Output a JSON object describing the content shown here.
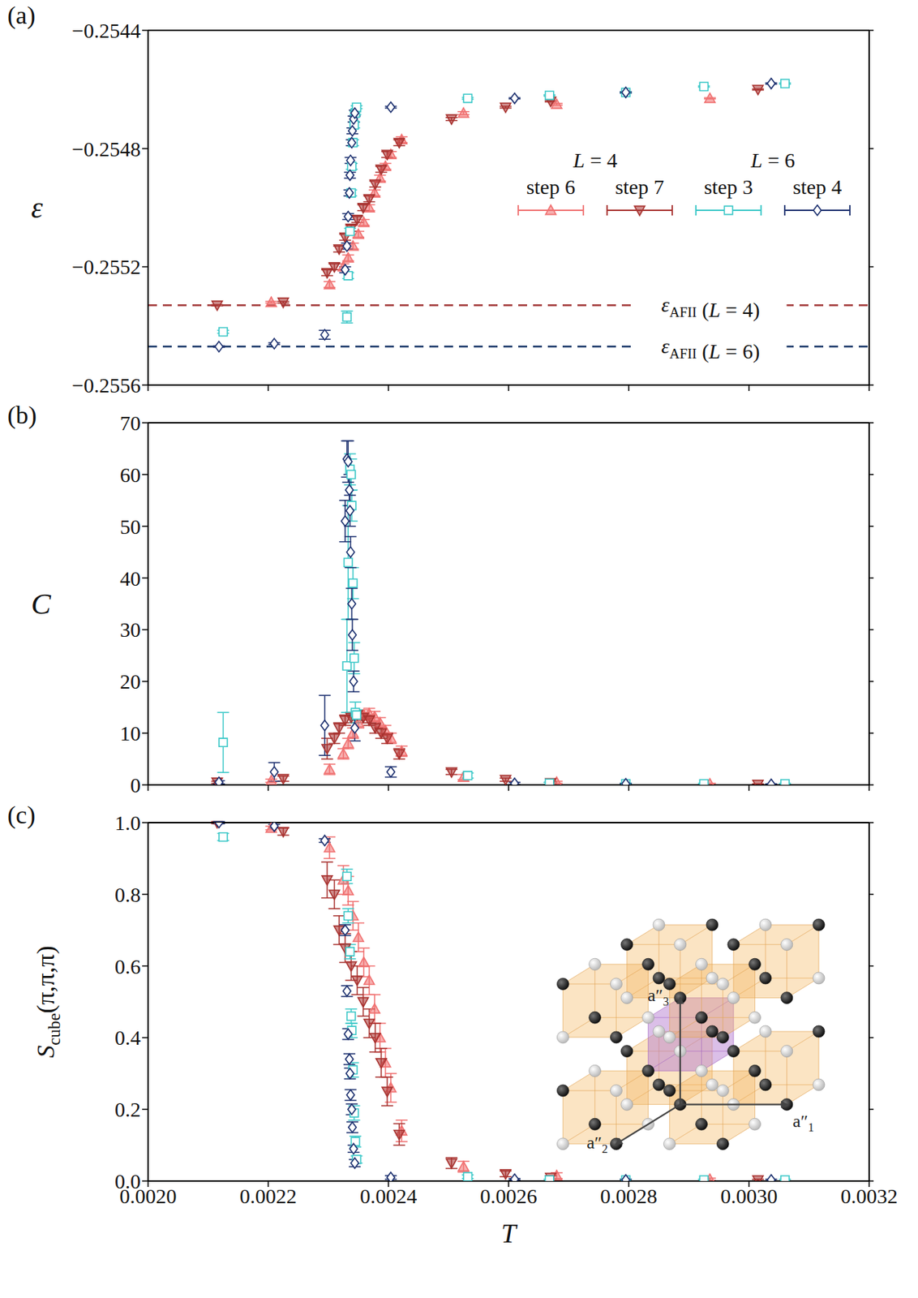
{
  "chart_data": [
    {
      "type": "scatter",
      "panel": "(a)",
      "ylabel": {
        "main": "ε"
      },
      "xlim": [
        0.002,
        0.0032
      ],
      "xticks": [
        {
          "value": 0.002,
          "label": "0.0020"
        },
        {
          "value": 0.0022,
          "label": "0.0022"
        },
        {
          "value": 0.0024,
          "label": "0.0024"
        },
        {
          "value": 0.0026,
          "label": "0.0026"
        },
        {
          "value": 0.0028,
          "label": "0.0028"
        },
        {
          "value": 0.003,
          "label": "0.0030"
        },
        {
          "value": 0.0032,
          "label": "0.0032"
        }
      ],
      "ylim": [
        -0.2556,
        -0.2544
      ],
      "yticks": [
        {
          "value": -0.2556,
          "label": "−0.2556"
        },
        {
          "value": -0.2552,
          "label": "−0.2552"
        },
        {
          "value": -0.2548,
          "label": "−0.2548"
        },
        {
          "value": -0.2544,
          "label": "−0.2544"
        }
      ],
      "tick_labels": "y",
      "legend": "right",
      "reference_lines": [
        {
          "value": -0.25533,
          "color": "#a33a3a",
          "line_style": "dashed",
          "label": {
            "main": "ε",
            "sub": "AFII",
            "rest": " (L = 4)"
          }
        },
        {
          "value": -0.25547,
          "color": "#1c3a6a",
          "line_style": "dashed",
          "label": {
            "main": "ε",
            "sub": "AFII",
            "rest": " (L = 6)"
          }
        }
      ],
      "series": [
        {
          "name": "step 6",
          "group": "L = 4",
          "color": "#f07070",
          "marker": "triangle-up",
          "x": [
            0.002205,
            0.002302,
            0.002325,
            0.002333,
            0.002341,
            0.00235,
            0.002359,
            0.002368,
            0.002377,
            0.002386,
            0.002395,
            0.002404,
            0.002422,
            0.002525,
            0.00268,
            0.002935
          ],
          "values": [
            -0.25532,
            -0.25526,
            -0.2552,
            -0.25517,
            -0.25513,
            -0.25509,
            -0.25505,
            -0.255,
            -0.25495,
            -0.2549,
            -0.25486,
            -0.25482,
            -0.25477,
            -0.25468,
            -0.25465,
            -0.25463
          ],
          "errors": [
            3e-06,
            1e-05,
            1e-05,
            1e-05,
            1e-05,
            1e-05,
            1e-05,
            1e-05,
            1e-05,
            1e-05,
            1e-05,
            1e-05,
            1e-05,
            5e-06,
            3e-06,
            2e-06
          ]
        },
        {
          "name": "step 7",
          "group": "L = 4",
          "color": "#a8322f",
          "marker": "triangle-down",
          "x": [
            0.002115,
            0.002225,
            0.002298,
            0.00231,
            0.002318,
            0.002328,
            0.002338,
            0.002348,
            0.002358,
            0.002368,
            0.002378,
            0.002388,
            0.002398,
            0.002418,
            0.002505,
            0.002595,
            0.00267,
            0.003015
          ],
          "values": [
            -0.25533,
            -0.25532,
            -0.25522,
            -0.2552,
            -0.25514,
            -0.2551,
            -0.25507,
            -0.25504,
            -0.255,
            -0.25497,
            -0.25492,
            -0.25487,
            -0.25482,
            -0.25478,
            -0.2547,
            -0.25466,
            -0.25464,
            -0.2546
          ],
          "errors": [
            2e-06,
            3e-06,
            1e-05,
            1e-05,
            1e-05,
            1e-05,
            1e-05,
            1e-05,
            1e-05,
            1e-05,
            1e-05,
            1e-05,
            1e-05,
            1e-05,
            5e-06,
            3e-06,
            2e-06,
            2e-06
          ]
        },
        {
          "name": "step 3",
          "group": "L = 6",
          "color": "#3cc8c8",
          "marker": "square",
          "x": [
            0.002125,
            0.002331,
            0.002333,
            0.002336,
            0.002338,
            0.002339,
            0.002341,
            0.002343,
            0.002345,
            0.002347,
            0.002532,
            0.002668,
            0.002795,
            0.002925,
            0.00306
          ],
          "values": [
            -0.25542,
            -0.25537,
            -0.25523,
            -0.25508,
            -0.25495,
            -0.25486,
            -0.25478,
            -0.25472,
            -0.25468,
            -0.25466,
            -0.25463,
            -0.25462,
            -0.25461,
            -0.25459,
            -0.25458
          ],
          "errors": [
            5e-06,
            2e-05,
            1e-05,
            1e-05,
            1e-05,
            1e-05,
            1e-05,
            1e-05,
            5e-06,
            5e-06,
            3e-06,
            2e-06,
            2e-06,
            2e-06,
            2e-06
          ]
        },
        {
          "name": "step 4",
          "group": "L = 6",
          "color": "#1b2f6e",
          "marker": "diamond",
          "x": [
            0.002118,
            0.00221,
            0.002294,
            0.002328,
            0.002331,
            0.002333,
            0.002335,
            0.002336,
            0.002337,
            0.002339,
            0.00234,
            0.002342,
            0.002344,
            0.002404,
            0.00261,
            0.002795,
            0.003037
          ],
          "values": [
            -0.25547,
            -0.25546,
            -0.25543,
            -0.25521,
            -0.25513,
            -0.25503,
            -0.25495,
            -0.25489,
            -0.25484,
            -0.25478,
            -0.25474,
            -0.2547,
            -0.25468,
            -0.25466,
            -0.25463,
            -0.25461,
            -0.25458
          ],
          "errors": [
            2e-06,
            3e-06,
            1.5e-05,
            1e-05,
            1e-05,
            1e-05,
            1e-05,
            1e-05,
            1e-05,
            1e-05,
            1e-05,
            1e-05,
            1e-05,
            3e-06,
            2e-06,
            2e-06,
            2e-06
          ]
        }
      ]
    },
    {
      "type": "scatter",
      "panel": "(b)",
      "ylabel": {
        "main": "C"
      },
      "xlim": [
        0.002,
        0.0032
      ],
      "xticks": [
        {
          "value": 0.002,
          "label": "0.0020"
        },
        {
          "value": 0.0022,
          "label": "0.0022"
        },
        {
          "value": 0.0024,
          "label": "0.0024"
        },
        {
          "value": 0.0026,
          "label": "0.0026"
        },
        {
          "value": 0.0028,
          "label": "0.0028"
        },
        {
          "value": 0.003,
          "label": "0.0030"
        },
        {
          "value": 0.0032,
          "label": "0.0032"
        }
      ],
      "ylim": [
        0,
        70
      ],
      "yticks": [
        0,
        10,
        20,
        30,
        40,
        50,
        60,
        70
      ],
      "tick_labels": "y",
      "series": [
        {
          "name": "step 6",
          "group": "L = 4",
          "color": "#f07070",
          "marker": "triangle-up",
          "x": [
            0.002205,
            0.002302,
            0.002325,
            0.002333,
            0.002341,
            0.00235,
            0.002359,
            0.002368,
            0.002377,
            0.002386,
            0.002395,
            0.002404,
            0.002422,
            0.002525,
            0.00268,
            0.002935
          ],
          "values": [
            0.8,
            3,
            6,
            8,
            10,
            12,
            13.5,
            13.8,
            13.2,
            12,
            10.5,
            9,
            6.5,
            1.5,
            0.5,
            0.2
          ],
          "errors": [
            0.3,
            1,
            1,
            1,
            1,
            1,
            1,
            1,
            1,
            1,
            1,
            1,
            1,
            0.5,
            0.2,
            0.1
          ]
        },
        {
          "name": "step 7",
          "group": "L = 4",
          "color": "#a8322f",
          "marker": "triangle-down",
          "x": [
            0.002115,
            0.002225,
            0.002298,
            0.00231,
            0.002318,
            0.002328,
            0.002338,
            0.002348,
            0.002358,
            0.002368,
            0.002378,
            0.002388,
            0.002398,
            0.002418,
            0.002505,
            0.002595,
            0.00267,
            0.003015
          ],
          "values": [
            0.5,
            1.2,
            7,
            9,
            11,
            12.5,
            13,
            13.5,
            13,
            12.5,
            11,
            10,
            9,
            6,
            2.5,
            1,
            0.4,
            0.1
          ],
          "errors": [
            0.2,
            0.5,
            2,
            1,
            1,
            1,
            1,
            1,
            1,
            1,
            1,
            1,
            1,
            1,
            0.5,
            0.3,
            0.2,
            0.1
          ]
        },
        {
          "name": "step 3",
          "group": "L = 6",
          "color": "#3cc8c8",
          "marker": "square",
          "x": [
            0.002125,
            0.002331,
            0.002333,
            0.002336,
            0.002338,
            0.002339,
            0.002341,
            0.002343,
            0.002345,
            0.002347,
            0.002532,
            0.002668,
            0.002795,
            0.002925,
            0.00306
          ],
          "values": [
            8.2,
            23,
            43,
            61,
            60,
            54,
            39,
            24.5,
            14,
            13.5,
            1.8,
            0.3,
            0.2,
            0.2,
            0.2
          ],
          "errors": [
            5.8,
            9,
            11,
            3,
            3,
            3,
            3,
            3,
            2,
            1,
            0.5,
            0.2,
            0.1,
            0.1,
            0.1
          ]
        },
        {
          "name": "step 4",
          "group": "L = 6",
          "color": "#1b2f6e",
          "marker": "diamond",
          "x": [
            0.002118,
            0.00221,
            0.002294,
            0.002328,
            0.002331,
            0.002333,
            0.002335,
            0.002336,
            0.002337,
            0.002339,
            0.00234,
            0.002342,
            0.002344,
            0.002404,
            0.00261,
            0.002795,
            0.003037
          ],
          "values": [
            0.5,
            2.5,
            11.5,
            51,
            63,
            62.5,
            57,
            53,
            45,
            35,
            29,
            20,
            11,
            2.5,
            0.3,
            0.2,
            0.1
          ],
          "errors": [
            0.3,
            1.8,
            5.8,
            4,
            3.5,
            4,
            3,
            3,
            3,
            3,
            3,
            2,
            2.5,
            1,
            0.2,
            0.1,
            0.1
          ]
        }
      ]
    },
    {
      "type": "scatter",
      "panel": "(c)",
      "ylabel": {
        "main": "S",
        "sub": "cube",
        "rest": "(π,π,π)"
      },
      "xlabel": "T",
      "xlim": [
        0.002,
        0.0032
      ],
      "xticks": [
        {
          "value": 0.002,
          "label": "0.0020"
        },
        {
          "value": 0.0022,
          "label": "0.0022"
        },
        {
          "value": 0.0024,
          "label": "0.0024"
        },
        {
          "value": 0.0026,
          "label": "0.0026"
        },
        {
          "value": 0.0028,
          "label": "0.0028"
        },
        {
          "value": 0.003,
          "label": "0.0030"
        },
        {
          "value": 0.0032,
          "label": "0.0032"
        }
      ],
      "ylim": [
        0,
        1
      ],
      "yticks": [
        {
          "value": 0,
          "label": "0.0"
        },
        0.2,
        0.4,
        0.6,
        0.8,
        {
          "value": 1,
          "label": "1.0"
        }
      ],
      "tick_labels": true,
      "inset": {
        "vectors": [
          "a″1",
          "a″2",
          "a″3"
        ]
      },
      "series": [
        {
          "name": "step 6",
          "group": "L = 4",
          "color": "#f07070",
          "marker": "triangle-up",
          "x": [
            0.002205,
            0.002302,
            0.002325,
            0.002333,
            0.002341,
            0.00235,
            0.002359,
            0.002368,
            0.002377,
            0.002386,
            0.002395,
            0.002404,
            0.002422,
            0.002525,
            0.00268,
            0.002935
          ],
          "values": [
            0.985,
            0.93,
            0.84,
            0.81,
            0.74,
            0.68,
            0.61,
            0.56,
            0.48,
            0.4,
            0.33,
            0.26,
            0.14,
            0.04,
            0.015,
            0.005
          ],
          "errors": [
            0.005,
            0.03,
            0.04,
            0.04,
            0.04,
            0.04,
            0.04,
            0.04,
            0.04,
            0.04,
            0.04,
            0.04,
            0.03,
            0.015,
            0.008,
            0.003
          ]
        },
        {
          "name": "step 7",
          "group": "L = 4",
          "color": "#a8322f",
          "marker": "triangle-down",
          "x": [
            0.002115,
            0.002225,
            0.002298,
            0.00231,
            0.002318,
            0.002328,
            0.002338,
            0.002348,
            0.002358,
            0.002368,
            0.002378,
            0.002388,
            0.002398,
            0.002418,
            0.002505,
            0.002595,
            0.00267,
            0.003015
          ],
          "values": [
            1,
            0.975,
            0.84,
            0.8,
            0.7,
            0.65,
            0.6,
            0.56,
            0.5,
            0.44,
            0.4,
            0.33,
            0.25,
            0.13,
            0.05,
            0.02,
            0.01,
            0.003
          ],
          "errors": [
            0.003,
            0.01,
            0.05,
            0.04,
            0.04,
            0.04,
            0.04,
            0.04,
            0.04,
            0.04,
            0.04,
            0.04,
            0.04,
            0.03,
            0.015,
            0.008,
            0.005,
            0.002
          ]
        },
        {
          "name": "step 3",
          "group": "L = 6",
          "color": "#3cc8c8",
          "marker": "square",
          "x": [
            0.002125,
            0.002331,
            0.002333,
            0.002336,
            0.002338,
            0.002339,
            0.002341,
            0.002343,
            0.002345,
            0.002347,
            0.002532,
            0.002668,
            0.002795,
            0.002925,
            0.00306
          ],
          "values": [
            0.96,
            0.85,
            0.74,
            0.64,
            0.46,
            0.42,
            0.31,
            0.19,
            0.11,
            0.06,
            0.012,
            0.003,
            0.003,
            0.003,
            0.003
          ],
          "errors": [
            0.01,
            0.02,
            0.02,
            0.02,
            0.02,
            0.02,
            0.02,
            0.02,
            0.015,
            0.01,
            0.005,
            0.002,
            0.002,
            0.002,
            0.002
          ]
        },
        {
          "name": "step 4",
          "group": "L = 6",
          "color": "#1b2f6e",
          "marker": "diamond",
          "x": [
            0.002118,
            0.00221,
            0.002294,
            0.002328,
            0.002331,
            0.002333,
            0.002335,
            0.002336,
            0.002337,
            0.002339,
            0.00234,
            0.002342,
            0.002344,
            0.002404,
            0.00261,
            0.002795,
            0.003037
          ],
          "values": [
            1,
            0.99,
            0.95,
            0.7,
            0.53,
            0.41,
            0.34,
            0.3,
            0.24,
            0.2,
            0.15,
            0.09,
            0.05,
            0.01,
            0.005,
            0.003,
            0.003
          ],
          "errors": [
            0.003,
            0.005,
            0.005,
            0.015,
            0.015,
            0.015,
            0.015,
            0.015,
            0.015,
            0.015,
            0.015,
            0.01,
            0.01,
            0.005,
            0.002,
            0.002,
            0.002
          ]
        }
      ]
    }
  ]
}
